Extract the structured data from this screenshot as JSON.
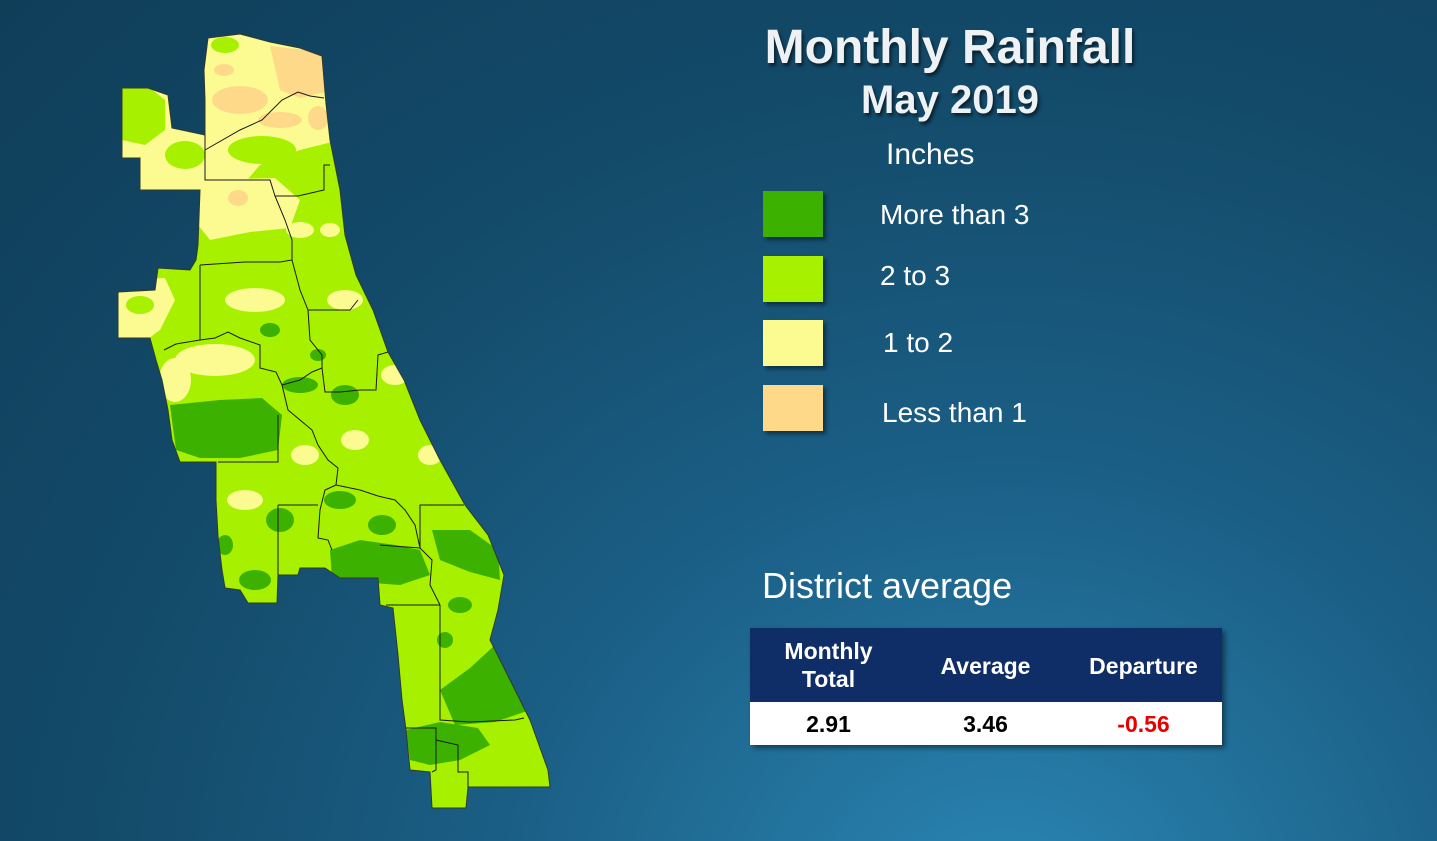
{
  "title": "Monthly Rainfall",
  "subtitle": "May 2019",
  "units": "Inches",
  "colors": {
    "more_than_3": "#3db100",
    "two_to_three": "#a6f000",
    "one_to_two": "#fbfb92",
    "less_than_1": "#ffd98a",
    "district_line": "#1a1a1a",
    "table_header": "#0f2d66",
    "negative": "#e60000"
  },
  "legend": [
    {
      "label": "More than 3",
      "color": "#3db100"
    },
    {
      "label": "2 to 3",
      "color": "#a6f000"
    },
    {
      "label": "1 to 2",
      "color": "#fbfb92"
    },
    {
      "label": "Less than 1",
      "color": "#ffd98a"
    }
  ],
  "district": {
    "title": "District average",
    "headers": {
      "monthly_total_1": "Monthly",
      "monthly_total_2": "Total",
      "average": "Average",
      "departure": "Departure"
    },
    "values": {
      "monthly_total": "2.91",
      "average": "3.46",
      "departure": "-0.56"
    }
  }
}
